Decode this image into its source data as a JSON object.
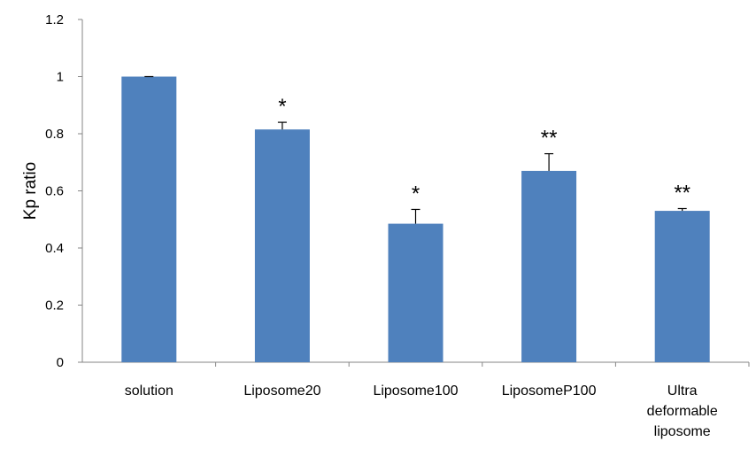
{
  "chart_data": {
    "type": "bar",
    "title": "",
    "xlabel": "",
    "ylabel": "Kp ratio",
    "ylim": [
      0,
      1.2
    ],
    "yticks": [
      "0",
      "0.2",
      "0.4",
      "0.6",
      "0.8",
      "1",
      "1.2"
    ],
    "categories": [
      "solution",
      "Liposome20",
      "Liposome100",
      "LiposomeP100",
      "Ultra deformable liposome"
    ],
    "category_label_lines": [
      [
        "solution"
      ],
      [
        "Liposome20"
      ],
      [
        "Liposome100"
      ],
      [
        "LiposomeP100"
      ],
      [
        "Ultra",
        "deformable",
        "liposome"
      ]
    ],
    "values": [
      1.0,
      0.815,
      0.485,
      0.67,
      0.53
    ],
    "error_plus": [
      0.0,
      0.025,
      0.05,
      0.06,
      0.008
    ],
    "significance": [
      "",
      "*",
      "*",
      "**",
      "**"
    ],
    "bar_color": "#4F81BD",
    "grid": false,
    "legend": "none"
  }
}
